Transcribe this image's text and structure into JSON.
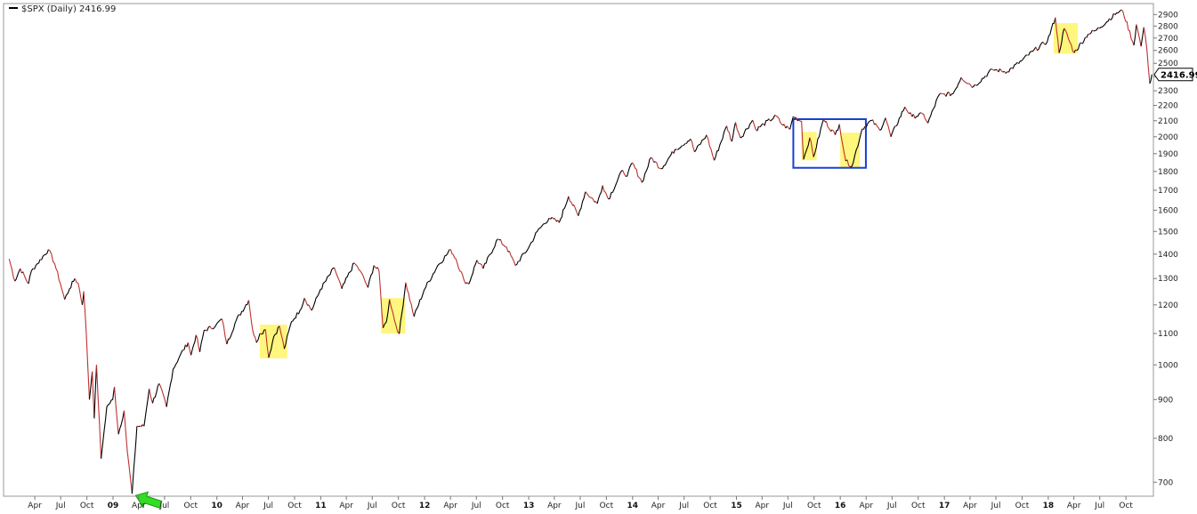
{
  "chart_data": {
    "type": "line",
    "symbol": "$SPX (Daily) 2416.99",
    "last_value": "2416.99",
    "y_scale": "log",
    "ylim": [
      680,
      2950
    ],
    "y_ticks": [
      700,
      800,
      900,
      1000,
      1100,
      1200,
      1300,
      1400,
      1500,
      1600,
      1700,
      1800,
      1900,
      2000,
      2100,
      2200,
      2300,
      2400,
      2500,
      2600,
      2700,
      2800,
      2900
    ],
    "xlim": [
      "2008-01-01",
      "2018-12-24"
    ],
    "x_ticks": [
      {
        "date": "2008-04-01",
        "label": "Apr",
        "year": false
      },
      {
        "date": "2008-07-01",
        "label": "Jul",
        "year": false
      },
      {
        "date": "2008-10-01",
        "label": "Oct",
        "year": false
      },
      {
        "date": "2009-01-01",
        "label": "09",
        "year": true
      },
      {
        "date": "2009-04-01",
        "label": "Apr",
        "year": false
      },
      {
        "date": "2009-07-01",
        "label": "Jul",
        "year": false
      },
      {
        "date": "2009-10-01",
        "label": "Oct",
        "year": false
      },
      {
        "date": "2010-01-01",
        "label": "10",
        "year": true
      },
      {
        "date": "2010-04-01",
        "label": "Apr",
        "year": false
      },
      {
        "date": "2010-07-01",
        "label": "Jul",
        "year": false
      },
      {
        "date": "2010-10-01",
        "label": "Oct",
        "year": false
      },
      {
        "date": "2011-01-01",
        "label": "11",
        "year": true
      },
      {
        "date": "2011-04-01",
        "label": "Apr",
        "year": false
      },
      {
        "date": "2011-07-01",
        "label": "Jul",
        "year": false
      },
      {
        "date": "2011-10-01",
        "label": "Oct",
        "year": false
      },
      {
        "date": "2012-01-01",
        "label": "12",
        "year": true
      },
      {
        "date": "2012-04-01",
        "label": "Apr",
        "year": false
      },
      {
        "date": "2012-07-01",
        "label": "Jul",
        "year": false
      },
      {
        "date": "2012-10-01",
        "label": "Oct",
        "year": false
      },
      {
        "date": "2013-01-01",
        "label": "13",
        "year": true
      },
      {
        "date": "2013-04-01",
        "label": "Apr",
        "year": false
      },
      {
        "date": "2013-07-01",
        "label": "Jul",
        "year": false
      },
      {
        "date": "2013-10-01",
        "label": "Oct",
        "year": false
      },
      {
        "date": "2014-01-01",
        "label": "14",
        "year": true
      },
      {
        "date": "2014-04-01",
        "label": "Apr",
        "year": false
      },
      {
        "date": "2014-07-01",
        "label": "Jul",
        "year": false
      },
      {
        "date": "2014-10-01",
        "label": "Oct",
        "year": false
      },
      {
        "date": "2015-01-01",
        "label": "15",
        "year": true
      },
      {
        "date": "2015-04-01",
        "label": "Apr",
        "year": false
      },
      {
        "date": "2015-07-01",
        "label": "Jul",
        "year": false
      },
      {
        "date": "2015-10-01",
        "label": "Oct",
        "year": false
      },
      {
        "date": "2016-01-01",
        "label": "16",
        "year": true
      },
      {
        "date": "2016-04-01",
        "label": "Apr",
        "year": false
      },
      {
        "date": "2016-07-01",
        "label": "Jul",
        "year": false
      },
      {
        "date": "2016-10-01",
        "label": "Oct",
        "year": false
      },
      {
        "date": "2017-01-01",
        "label": "17",
        "year": true
      },
      {
        "date": "2017-04-01",
        "label": "Apr",
        "year": false
      },
      {
        "date": "2017-07-01",
        "label": "Jul",
        "year": false
      },
      {
        "date": "2017-10-01",
        "label": "Oct",
        "year": false
      },
      {
        "date": "2018-01-01",
        "label": "18",
        "year": true
      },
      {
        "date": "2018-04-01",
        "label": "Apr",
        "year": false
      },
      {
        "date": "2018-07-01",
        "label": "Jul",
        "year": false
      },
      {
        "date": "2018-10-01",
        "label": "Oct",
        "year": false
      }
    ],
    "series": [
      {
        "line_color": "#000000",
        "down_color": "#c03030",
        "points": [
          [
            "2008-01-02",
            1380
          ],
          [
            "2008-01-22",
            1290
          ],
          [
            "2008-02-10",
            1340
          ],
          [
            "2008-03-10",
            1280
          ],
          [
            "2008-03-20",
            1330
          ],
          [
            "2008-04-10",
            1360
          ],
          [
            "2008-05-19",
            1420
          ],
          [
            "2008-06-10",
            1360
          ],
          [
            "2008-06-30",
            1280
          ],
          [
            "2008-07-15",
            1220
          ],
          [
            "2008-08-01",
            1260
          ],
          [
            "2008-08-20",
            1300
          ],
          [
            "2008-09-01",
            1280
          ],
          [
            "2008-09-15",
            1200
          ],
          [
            "2008-09-20",
            1250
          ],
          [
            "2008-09-29",
            1100
          ],
          [
            "2008-10-10",
            900
          ],
          [
            "2008-10-20",
            980
          ],
          [
            "2008-10-27",
            850
          ],
          [
            "2008-11-04",
            1000
          ],
          [
            "2008-11-20",
            752
          ],
          [
            "2008-12-01",
            820
          ],
          [
            "2008-12-10",
            880
          ],
          [
            "2008-12-31",
            900
          ],
          [
            "2009-01-06",
            935
          ],
          [
            "2009-01-20",
            810
          ],
          [
            "2009-02-09",
            870
          ],
          [
            "2009-02-20",
            770
          ],
          [
            "2009-03-09",
            676
          ],
          [
            "2009-03-20",
            770
          ],
          [
            "2009-03-26",
            830
          ],
          [
            "2009-04-20",
            830
          ],
          [
            "2009-05-08",
            930
          ],
          [
            "2009-05-20",
            890
          ],
          [
            "2009-06-12",
            945
          ],
          [
            "2009-07-08",
            880
          ],
          [
            "2009-07-31",
            987
          ],
          [
            "2009-08-25",
            1030
          ],
          [
            "2009-09-22",
            1070
          ],
          [
            "2009-10-02",
            1030
          ],
          [
            "2009-10-20",
            1095
          ],
          [
            "2009-11-02",
            1040
          ],
          [
            "2009-11-17",
            1110
          ],
          [
            "2009-12-28",
            1127
          ],
          [
            "2010-01-19",
            1150
          ],
          [
            "2010-02-05",
            1065
          ],
          [
            "2010-03-10",
            1145
          ],
          [
            "2010-04-23",
            1217
          ],
          [
            "2010-05-07",
            1110
          ],
          [
            "2010-05-20",
            1070
          ],
          [
            "2010-06-01",
            1100
          ],
          [
            "2010-06-21",
            1113
          ],
          [
            "2010-07-02",
            1022
          ],
          [
            "2010-07-20",
            1090
          ],
          [
            "2010-08-09",
            1125
          ],
          [
            "2010-08-26",
            1050
          ],
          [
            "2010-09-20",
            1140
          ],
          [
            "2010-10-20",
            1180
          ],
          [
            "2010-11-05",
            1225
          ],
          [
            "2010-11-30",
            1180
          ],
          [
            "2010-12-31",
            1258
          ],
          [
            "2011-02-18",
            1343
          ],
          [
            "2011-03-16",
            1260
          ],
          [
            "2011-04-29",
            1363
          ],
          [
            "2011-05-20",
            1330
          ],
          [
            "2011-06-16",
            1265
          ],
          [
            "2011-07-07",
            1353
          ],
          [
            "2011-07-25",
            1330
          ],
          [
            "2011-08-08",
            1119
          ],
          [
            "2011-08-20",
            1140
          ],
          [
            "2011-08-31",
            1220
          ],
          [
            "2011-09-22",
            1129
          ],
          [
            "2011-10-04",
            1099
          ],
          [
            "2011-10-27",
            1284
          ],
          [
            "2011-11-25",
            1158
          ],
          [
            "2011-12-31",
            1257
          ],
          [
            "2012-02-15",
            1350
          ],
          [
            "2012-04-02",
            1419
          ],
          [
            "2012-04-20",
            1380
          ],
          [
            "2012-05-18",
            1295
          ],
          [
            "2012-06-04",
            1278
          ],
          [
            "2012-07-03",
            1375
          ],
          [
            "2012-07-25",
            1340
          ],
          [
            "2012-09-14",
            1466
          ],
          [
            "2012-10-15",
            1430
          ],
          [
            "2012-11-15",
            1353
          ],
          [
            "2012-12-31",
            1426
          ],
          [
            "2013-01-31",
            1500
          ],
          [
            "2013-03-14",
            1563
          ],
          [
            "2013-04-18",
            1541
          ],
          [
            "2013-05-21",
            1669
          ],
          [
            "2013-06-24",
            1573
          ],
          [
            "2013-07-19",
            1692
          ],
          [
            "2013-08-30",
            1633
          ],
          [
            "2013-09-18",
            1725
          ],
          [
            "2013-10-08",
            1655
          ],
          [
            "2013-11-27",
            1807
          ],
          [
            "2013-12-13",
            1775
          ],
          [
            "2013-12-31",
            1848
          ],
          [
            "2014-02-03",
            1741
          ],
          [
            "2014-03-07",
            1878
          ],
          [
            "2014-04-11",
            1815
          ],
          [
            "2014-05-30",
            1923
          ],
          [
            "2014-07-24",
            1987
          ],
          [
            "2014-08-07",
            1910
          ],
          [
            "2014-09-18",
            2011
          ],
          [
            "2014-10-15",
            1862
          ],
          [
            "2014-11-28",
            2067
          ],
          [
            "2014-12-16",
            1972
          ],
          [
            "2014-12-29",
            2090
          ],
          [
            "2015-01-15",
            1993
          ],
          [
            "2015-02-27",
            2104
          ],
          [
            "2015-03-10",
            2044
          ],
          [
            "2015-05-21",
            2131
          ],
          [
            "2015-06-08",
            2080
          ],
          [
            "2015-07-08",
            2046
          ],
          [
            "2015-07-20",
            2128
          ],
          [
            "2015-08-18",
            2096
          ],
          [
            "2015-08-25",
            1867
          ],
          [
            "2015-09-16",
            1995
          ],
          [
            "2015-09-29",
            1881
          ],
          [
            "2015-11-03",
            2109
          ],
          [
            "2015-12-14",
            2012
          ],
          [
            "2015-12-29",
            2078
          ],
          [
            "2016-01-20",
            1859
          ],
          [
            "2016-02-11",
            1829
          ],
          [
            "2016-03-18",
            2049
          ],
          [
            "2016-04-20",
            2102
          ],
          [
            "2016-05-19",
            2040
          ],
          [
            "2016-06-08",
            2119
          ],
          [
            "2016-06-27",
            2000
          ],
          [
            "2016-08-15",
            2190
          ],
          [
            "2016-09-09",
            2127
          ],
          [
            "2016-10-20",
            2141
          ],
          [
            "2016-11-04",
            2085
          ],
          [
            "2016-12-13",
            2271
          ],
          [
            "2017-01-31",
            2279
          ],
          [
            "2017-03-01",
            2395
          ],
          [
            "2017-04-13",
            2329
          ],
          [
            "2017-06-19",
            2453
          ],
          [
            "2017-08-10",
            2438
          ],
          [
            "2017-09-29",
            2519
          ],
          [
            "2017-11-08",
            2594
          ],
          [
            "2017-12-29",
            2674
          ],
          [
            "2018-01-26",
            2873
          ],
          [
            "2018-02-08",
            2581
          ],
          [
            "2018-02-26",
            2780
          ],
          [
            "2018-04-02",
            2582
          ],
          [
            "2018-05-21",
            2733
          ],
          [
            "2018-06-20",
            2767
          ],
          [
            "2018-08-29",
            2914
          ],
          [
            "2018-09-20",
            2931
          ],
          [
            "2018-10-29",
            2641
          ],
          [
            "2018-11-07",
            2814
          ],
          [
            "2018-11-23",
            2633
          ],
          [
            "2018-12-03",
            2790
          ],
          [
            "2018-12-14",
            2600
          ],
          [
            "2018-12-24",
            2351
          ],
          [
            "2018-12-31",
            2417
          ]
        ]
      }
    ],
    "highlights": [
      {
        "from": "2010-06-01",
        "to": "2010-09-05",
        "y_low": 1020,
        "y_high": 1130,
        "color": "#fff466"
      },
      {
        "from": "2011-08-01",
        "to": "2011-10-25",
        "y_low": 1100,
        "y_high": 1225,
        "color": "#fff466"
      },
      {
        "from": "2015-08-17",
        "to": "2015-10-10",
        "y_low": 1862,
        "y_high": 2030,
        "color": "#fff466"
      },
      {
        "from": "2016-01-01",
        "to": "2016-03-10",
        "y_low": 1820,
        "y_high": 2025,
        "color": "#fff466"
      },
      {
        "from": "2018-01-20",
        "to": "2018-04-15",
        "y_low": 2575,
        "y_high": 2825,
        "color": "#fff466"
      }
    ],
    "boxes": [
      {
        "from": "2015-07-20",
        "to": "2016-03-31",
        "y_low": 1820,
        "y_high": 2110,
        "color": "#1a3fd0"
      }
    ],
    "arrow": {
      "date": "2009-03-09",
      "value": 676,
      "color": "#33dd22"
    },
    "grid": false,
    "legend": "top-left"
  }
}
